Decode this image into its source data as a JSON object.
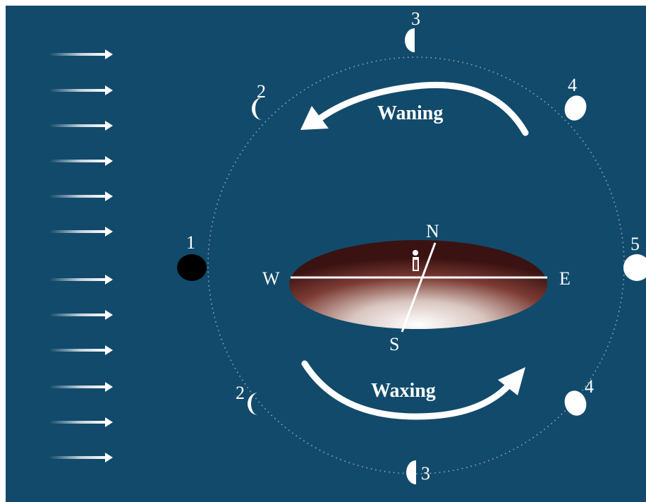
{
  "colors": {
    "background": "#124a6b",
    "white": "#ffffff",
    "new_moon": "#000000",
    "earth_dark": "#3a1212"
  },
  "labels": {
    "phase_1": "1",
    "phase_2_top": "2",
    "phase_3_top": "3",
    "phase_4_top": "4",
    "phase_5": "5",
    "phase_2_bottom": "2",
    "phase_3_bottom": "3",
    "phase_4_bottom": "4",
    "waning": "Waning",
    "waxing": "Waxing",
    "north": "N",
    "south": "S",
    "east": "E",
    "west": "W"
  },
  "icons": {
    "sunlight": "right-arrow-icon",
    "observer": "person-icon"
  }
}
